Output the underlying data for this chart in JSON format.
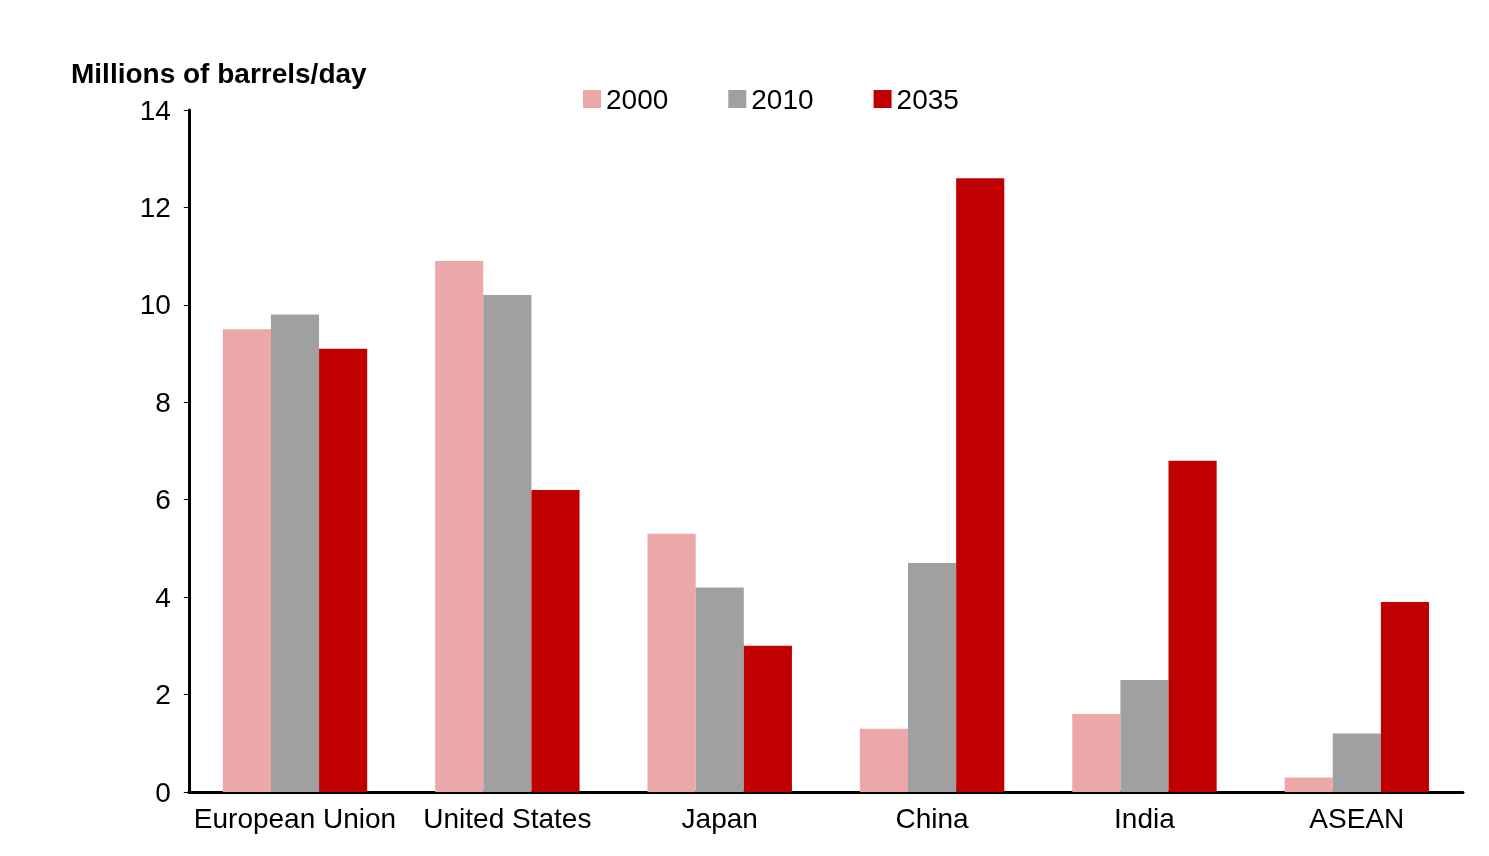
{
  "chart_data": {
    "type": "bar",
    "ylabel": "Millions of barrels/day",
    "categories": [
      "European Union",
      "United States",
      "Japan",
      "China",
      "India",
      "ASEAN"
    ],
    "series": [
      {
        "name": "2000",
        "color": "#eca8a8",
        "values": [
          9.5,
          10.9,
          5.3,
          1.3,
          1.6,
          0.3
        ]
      },
      {
        "name": "2010",
        "color": "#a0a0a0",
        "values": [
          9.8,
          10.2,
          4.2,
          4.7,
          2.3,
          1.2
        ]
      },
      {
        "name": "2035",
        "color": "#c00000",
        "values": [
          9.1,
          6.2,
          3.0,
          12.6,
          6.8,
          3.9
        ]
      }
    ],
    "ylim": [
      0,
      14
    ],
    "yticks": [
      0,
      2,
      4,
      6,
      8,
      10,
      12,
      14
    ],
    "grid": false,
    "legend": "top"
  }
}
